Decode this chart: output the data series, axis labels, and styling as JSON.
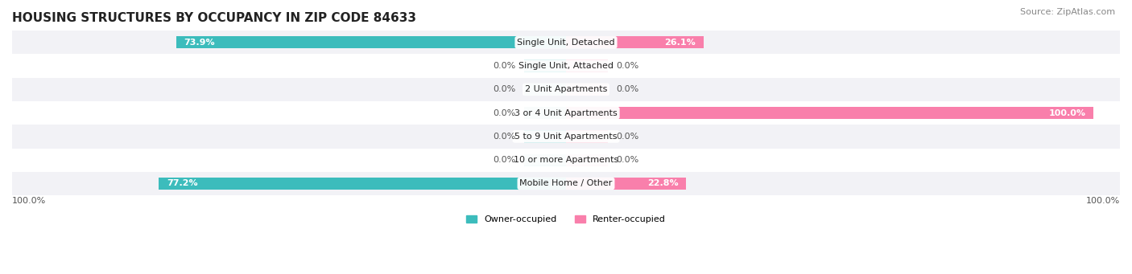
{
  "title": "HOUSING STRUCTURES BY OCCUPANCY IN ZIP CODE 84633",
  "source": "Source: ZipAtlas.com",
  "categories": [
    "Single Unit, Detached",
    "Single Unit, Attached",
    "2 Unit Apartments",
    "3 or 4 Unit Apartments",
    "5 to 9 Unit Apartments",
    "10 or more Apartments",
    "Mobile Home / Other"
  ],
  "owner_pct": [
    73.9,
    0.0,
    0.0,
    0.0,
    0.0,
    0.0,
    77.2
  ],
  "renter_pct": [
    26.1,
    0.0,
    0.0,
    100.0,
    0.0,
    0.0,
    22.8
  ],
  "owner_color": "#3cbcbc",
  "renter_color": "#f97fab",
  "owner_color_light": "#92d8d8",
  "renter_color_light": "#f9b8cd",
  "owner_label": "Owner-occupied",
  "renter_label": "Renter-occupied",
  "row_bg_even": "#f2f2f6",
  "row_bg_odd": "#ffffff",
  "title_fontsize": 11,
  "label_fontsize": 8,
  "value_fontsize": 8,
  "source_fontsize": 8,
  "bar_height": 0.52,
  "stub_size": 8.0,
  "x_left_label": "100.0%",
  "x_right_label": "100.0%"
}
